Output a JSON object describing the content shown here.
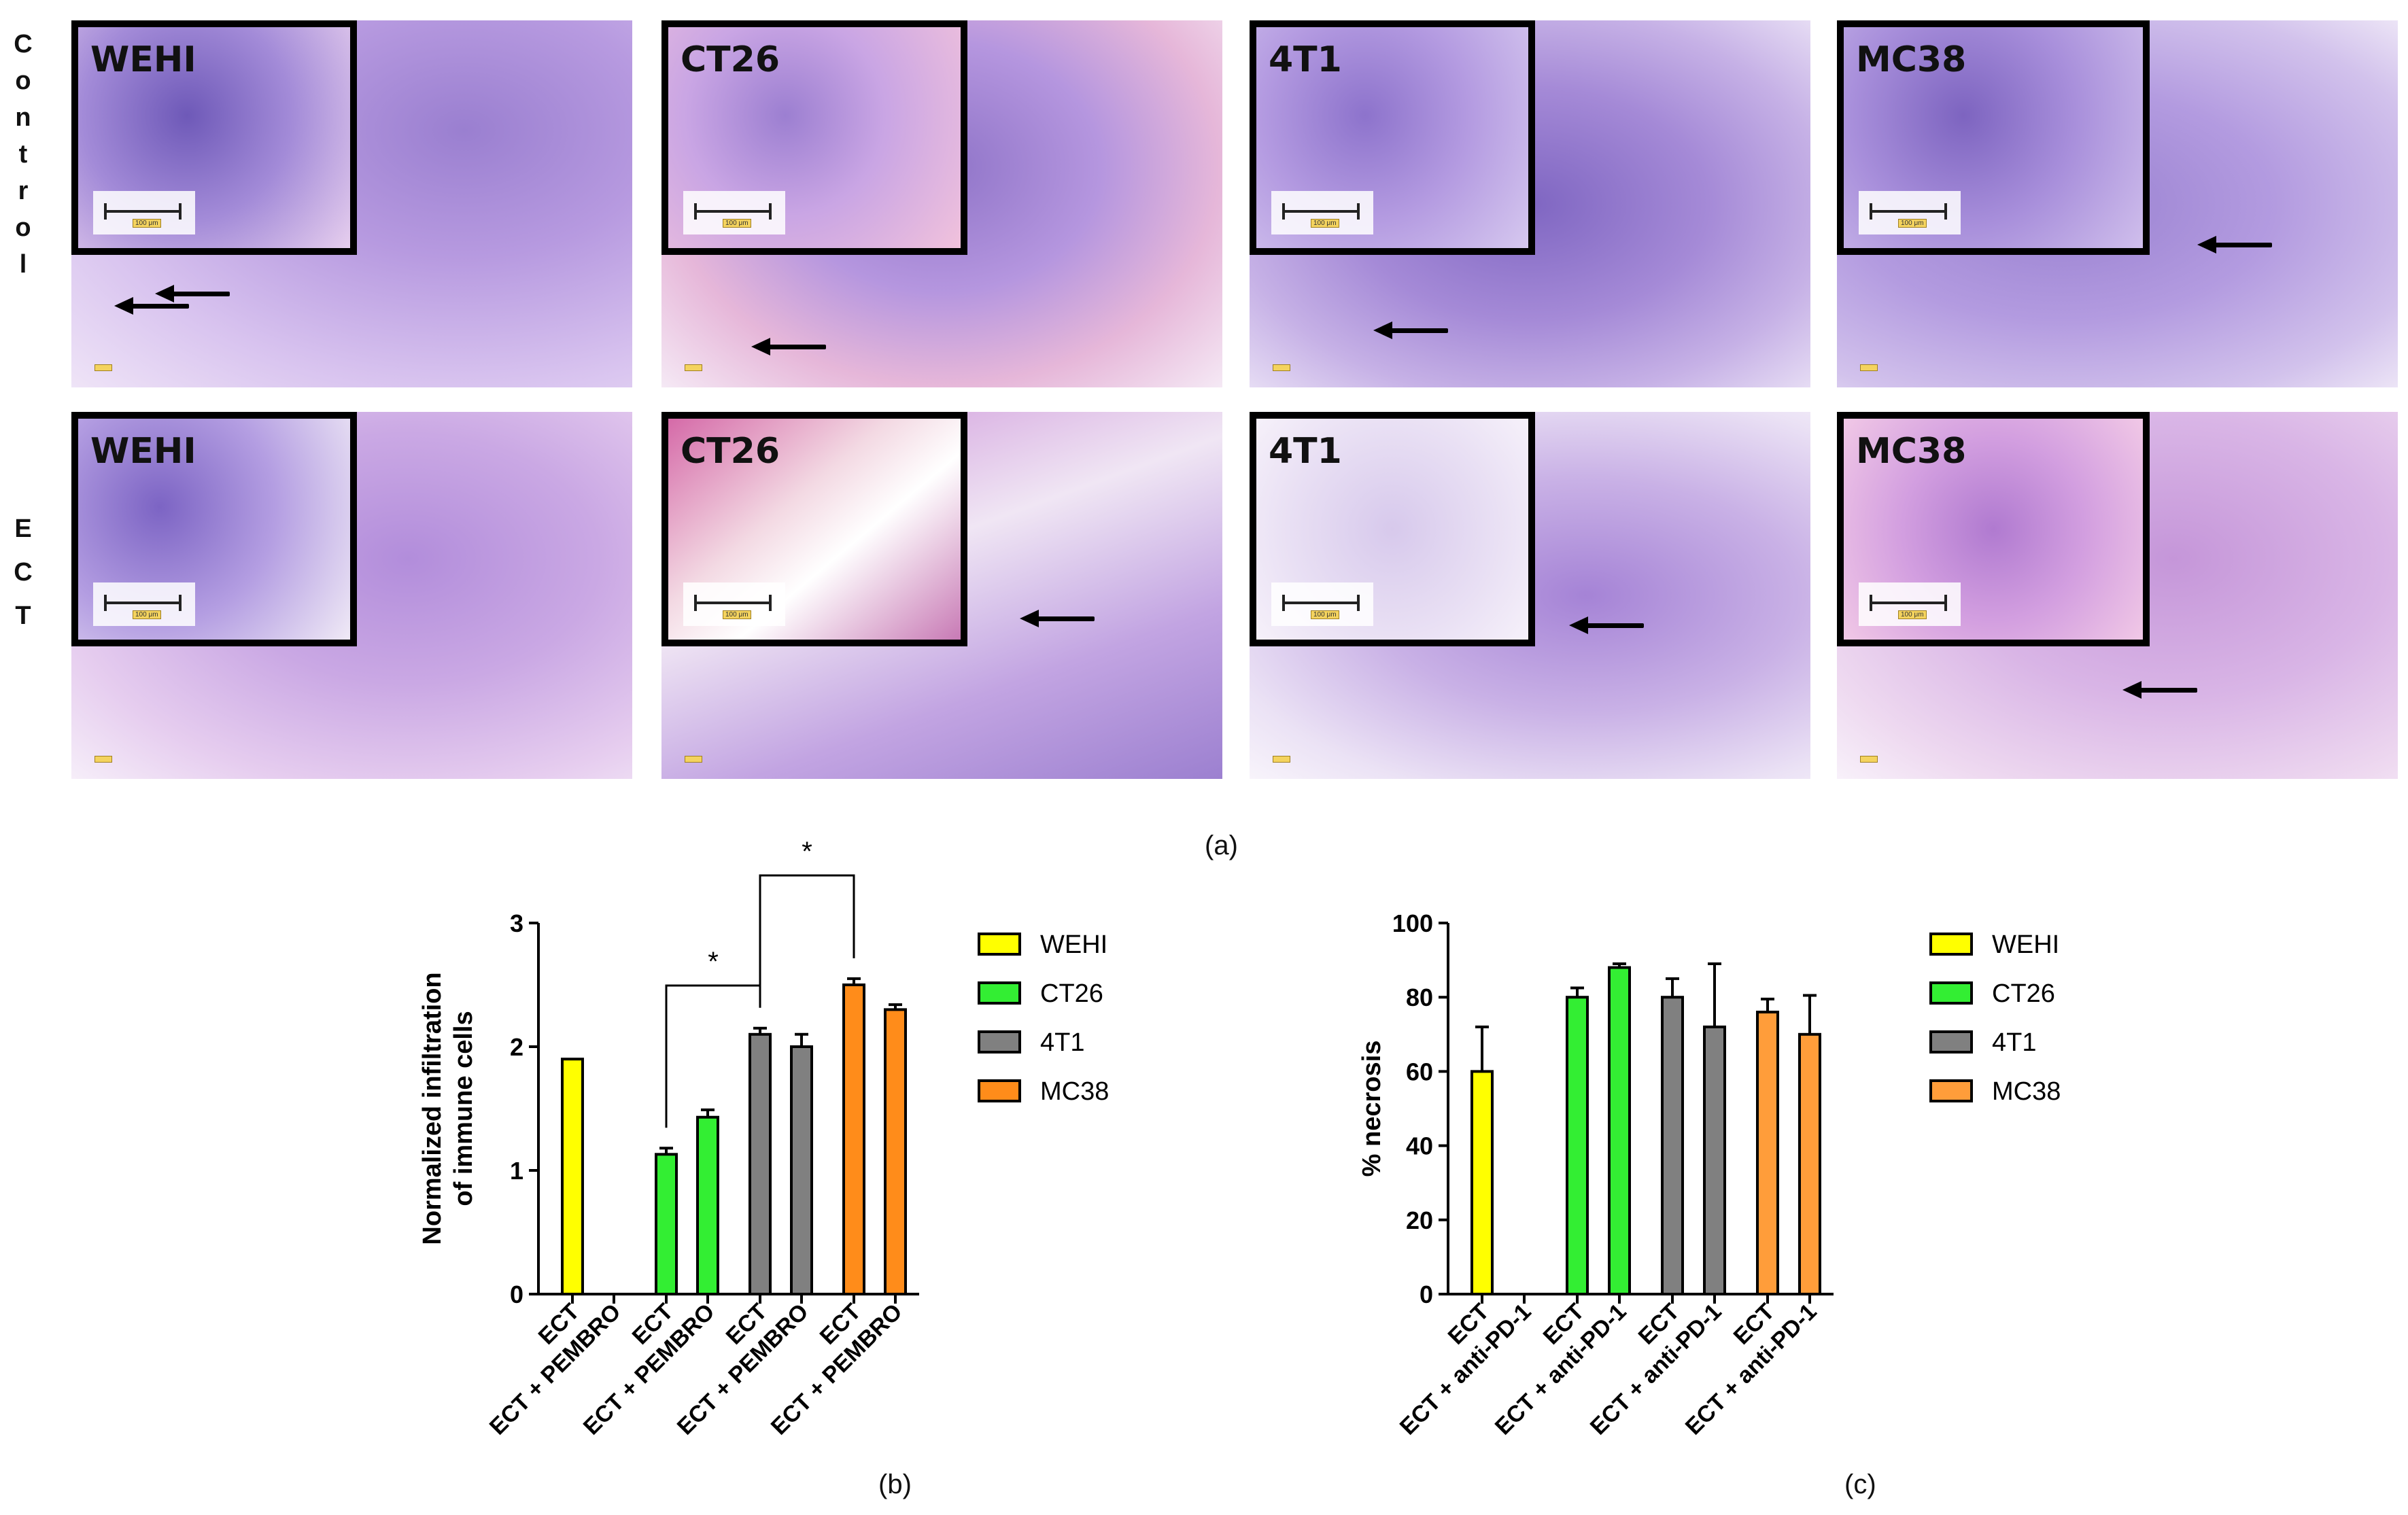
{
  "row_labels": {
    "control": "Control",
    "ect": "ECT"
  },
  "panels": {
    "control": [
      {
        "label": "WEHI",
        "scale": "100 μm"
      },
      {
        "label": "CT26",
        "scale": "100 μm"
      },
      {
        "label": "4T1",
        "scale": "100 μm"
      },
      {
        "label": "MC38",
        "scale": "100 μm"
      }
    ],
    "ect": [
      {
        "label": "WEHI",
        "scale": "100 μm"
      },
      {
        "label": "CT26",
        "scale": "100 μm"
      },
      {
        "label": "4T1",
        "scale": "100 μm"
      },
      {
        "label": "MC38",
        "scale": "100 μm"
      }
    ]
  },
  "captions": {
    "a": "(a)",
    "b": "(b)",
    "c": "(c)"
  },
  "chart_data": [
    {
      "type": "bar",
      "ylabel": "Normalized infiltration of immune cells",
      "ylim": [
        0,
        3
      ],
      "yticks": [
        0,
        1,
        2,
        3
      ],
      "categories": [
        "ECT",
        "ECT + PEMBRO",
        "ECT",
        "ECT + PEMBRO",
        "ECT",
        "ECT + PEMBRO",
        "ECT",
        "ECT + PEMBRO"
      ],
      "bars": [
        {
          "group": "WEHI",
          "label": "ECT",
          "value": 1.9,
          "error": 0
        },
        {
          "group": "WEHI",
          "label": "ECT + PEMBRO",
          "value": null,
          "error": null
        },
        {
          "group": "CT26",
          "label": "ECT",
          "value": 1.13,
          "error": 0.05
        },
        {
          "group": "CT26",
          "label": "ECT + PEMBRO",
          "value": 1.43,
          "error": 0.06
        },
        {
          "group": "4T1",
          "label": "ECT",
          "value": 2.1,
          "error": 0.05
        },
        {
          "group": "4T1",
          "label": "ECT + PEMBRO",
          "value": 2.0,
          "error": 0.1
        },
        {
          "group": "MC38",
          "label": "ECT",
          "value": 2.5,
          "error": 0.05
        },
        {
          "group": "MC38",
          "label": "ECT + PEMBRO",
          "value": 2.3,
          "error": 0.04
        }
      ],
      "significance": [
        {
          "from_bar": 2,
          "to_bar": 4,
          "mark": "*"
        },
        {
          "from_bar": 4,
          "to_bar": 6,
          "mark": "*"
        }
      ],
      "legend": [
        {
          "name": "WEHI",
          "color": "#ffff00"
        },
        {
          "name": "CT26",
          "color": "#33ee33"
        },
        {
          "name": "4T1",
          "color": "#808080"
        },
        {
          "name": "MC38",
          "color": "#ff8c1a"
        }
      ],
      "legend_position": "right"
    },
    {
      "type": "bar",
      "ylabel": "% necrosis",
      "ylim": [
        0,
        100
      ],
      "yticks": [
        0,
        20,
        40,
        60,
        80,
        100
      ],
      "categories": [
        "ECT",
        "ECT + anti-PD-1",
        "ECT",
        "ECT + anti-PD-1",
        "ECT",
        "ECT + anti-PD-1",
        "ECT",
        "ECT + anti-PD-1"
      ],
      "bars": [
        {
          "group": "WEHI",
          "label": "ECT",
          "value": 60,
          "error": 12
        },
        {
          "group": "WEHI",
          "label": "ECT + anti-PD-1",
          "value": null,
          "error": null
        },
        {
          "group": "CT26",
          "label": "ECT",
          "value": 80,
          "error": 2.5
        },
        {
          "group": "CT26",
          "label": "ECT + anti-PD-1",
          "value": 88,
          "error": 1
        },
        {
          "group": "4T1",
          "label": "ECT",
          "value": 80,
          "error": 5
        },
        {
          "group": "4T1",
          "label": "ECT + anti-PD-1",
          "value": 72,
          "error": 17
        },
        {
          "group": "MC38",
          "label": "ECT",
          "value": 76,
          "error": 3.5
        },
        {
          "group": "MC38",
          "label": "ECT + anti-PD-1",
          "value": 70,
          "error": 10.5
        }
      ],
      "legend": [
        {
          "name": "WEHI",
          "color": "#ffff00"
        },
        {
          "name": "CT26",
          "color": "#33ee33"
        },
        {
          "name": "4T1",
          "color": "#808080"
        },
        {
          "name": "MC38",
          "color": "#ff9d3a"
        }
      ],
      "legend_position": "right"
    }
  ]
}
